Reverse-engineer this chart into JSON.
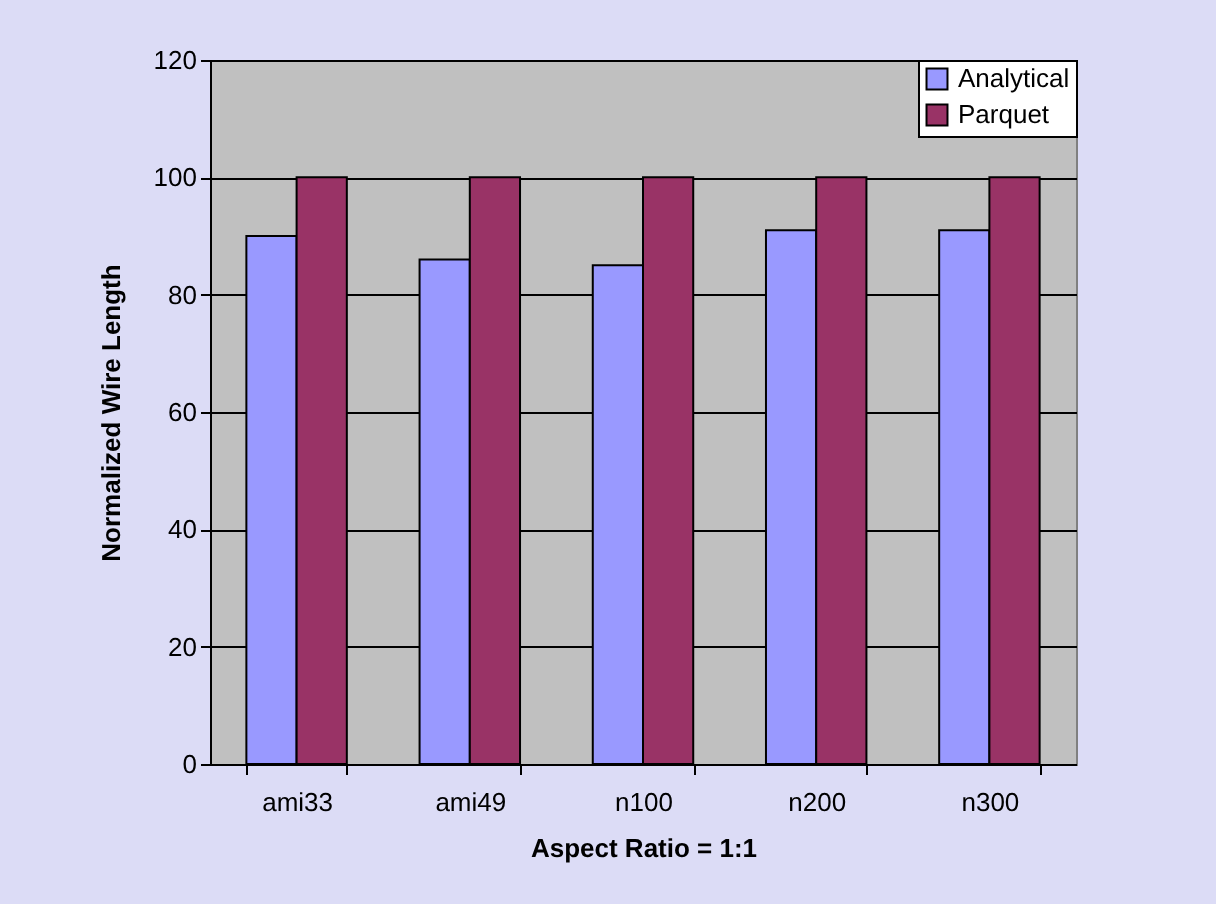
{
  "chart_data": {
    "type": "bar",
    "xlabel": "Aspect Ratio = 1:1",
    "ylabel": "Normalized Wire Length",
    "categories": [
      "ami33",
      "ami49",
      "n100",
      "n200",
      "n300"
    ],
    "series": [
      {
        "name": "Analytical",
        "color": "#9999ff",
        "values": [
          90,
          86,
          85,
          91,
          91
        ]
      },
      {
        "name": "Parquet",
        "color": "#993366",
        "values": [
          100,
          100,
          100,
          100,
          100
        ]
      }
    ],
    "ylim": [
      0,
      120
    ],
    "yticks": [
      0,
      20,
      40,
      60,
      80,
      100,
      120
    ],
    "grid": "y",
    "legend": "top right"
  }
}
